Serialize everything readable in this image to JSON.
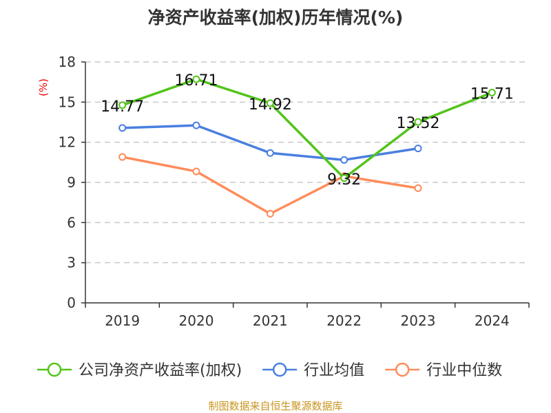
{
  "chart_data": {
    "type": "line",
    "title": "净资产收益率(加权)历年情况(%)",
    "ylabel": "(%)",
    "categories": [
      "2019",
      "2020",
      "2021",
      "2022",
      "2023",
      "2024"
    ],
    "ylim": [
      0,
      18
    ],
    "yticks": [
      "0",
      "3",
      "6",
      "9",
      "12",
      "15",
      "18"
    ],
    "grid": true,
    "legend_position": "bottom",
    "series": [
      {
        "name": "公司净资产收益率(加权)",
        "color": "#52c41a",
        "values": [
          14.77,
          16.71,
          14.92,
          9.32,
          13.52,
          15.71
        ],
        "labels": [
          "14.77",
          "16.71",
          "14.92",
          "9.32",
          "13.52",
          "15.71"
        ]
      },
      {
        "name": "行业均值",
        "color": "#4a7fe0",
        "values": [
          13.07,
          13.26,
          11.2,
          10.68,
          11.54,
          null
        ]
      },
      {
        "name": "行业中位数",
        "color": "#ff8c5a",
        "values": [
          10.9,
          9.82,
          6.66,
          9.47,
          8.57,
          null
        ]
      }
    ]
  },
  "source": "制图数据来自恒生聚源数据库"
}
